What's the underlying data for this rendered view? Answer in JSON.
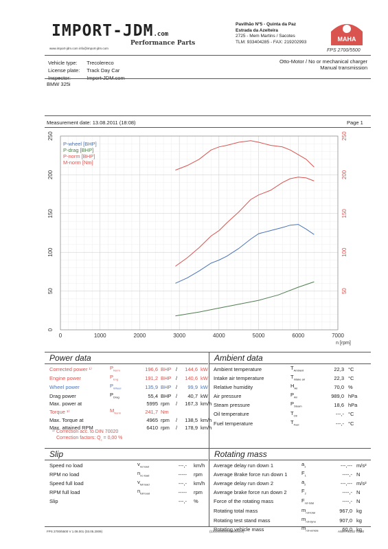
{
  "header": {
    "logo_text": "IMPORT-JDM",
    "logo_suffix": ".com",
    "tagline": "Performance Parts",
    "weblinks": "www.import-jdm.com    info@import-jdm.com",
    "address": [
      "Pavilhão Nº5 - Quinta da Paz",
      "Estrada da Azelteira",
      "2725 - Mem Martins / Sacotes",
      "TLM: 933404285 - FAX: 219202993"
    ],
    "maha_logo": "MAHA",
    "fps_model": "FPS 2700/5500"
  },
  "vehicle": {
    "rows": [
      {
        "label": "Vehicle type:",
        "value": "Trecolereco"
      },
      {
        "label": "License plate:",
        "value": "Track Day Car"
      },
      {
        "label": "Inspector:",
        "value": "Import-JDM.com"
      }
    ],
    "engine_type": "Otto-Motor / No or mechanical charger",
    "transmission": "Manual transmission",
    "model": "BMW 325i"
  },
  "measurement": {
    "date_label": "Measurement date: 13.08.2011 (18:08)",
    "page_label": "Page 1"
  },
  "chart_data": {
    "type": "line",
    "xlabel": "n [rpm]",
    "xlim": [
      0,
      7000
    ],
    "ylim_left": [
      0,
      250
    ],
    "ylim_right": [
      0,
      250
    ],
    "x_ticks": [
      0,
      1000,
      2000,
      3000,
      4000,
      5000,
      6000,
      7000
    ],
    "y_ticks_left": [
      0,
      50,
      100,
      150,
      200,
      250
    ],
    "y_ticks_right": [
      50,
      100,
      150,
      200,
      250
    ],
    "grid": true,
    "legend_position": "top-left",
    "series": [
      {
        "name": "P-wheel [BHP]",
        "color": "#4a73b5",
        "axis": "left",
        "x": [
          2900,
          3200,
          3500,
          3800,
          4000,
          4200,
          4500,
          4800,
          5000,
          5300,
          5600,
          5800,
          6000,
          6200,
          6400
        ],
        "y": [
          60,
          67,
          76,
          86,
          90,
          95,
          105,
          117,
          124,
          128,
          132,
          135,
          136,
          130,
          123
        ]
      },
      {
        "name": "P-drag [BHP]",
        "color": "#4e7d4e",
        "axis": "left",
        "x": [
          2900,
          3500,
          4000,
          4500,
          5000,
          5500,
          6000,
          6400
        ],
        "y": [
          18,
          23,
          28,
          33,
          38,
          45,
          55,
          62
        ]
      },
      {
        "name": "P-norm [BHP]",
        "color": "#d9534f",
        "axis": "left",
        "x": [
          2900,
          3200,
          3500,
          3800,
          4000,
          4200,
          4500,
          4800,
          5000,
          5300,
          5600,
          5800,
          6000,
          6200,
          6400
        ],
        "y": [
          82,
          93,
          106,
          121,
          128,
          138,
          152,
          168,
          174,
          180,
          190,
          195,
          197,
          196,
          192
        ]
      },
      {
        "name": "M-norm [Nm]",
        "color": "#d9534f",
        "axis": "right",
        "x": [
          2900,
          3200,
          3500,
          3800,
          4000,
          4200,
          4500,
          4800,
          5000,
          5300,
          5600,
          5800,
          6000,
          6200,
          6400
        ],
        "y": [
          206,
          212,
          220,
          232,
          236,
          238,
          242,
          244,
          242,
          238,
          236,
          232,
          226,
          220,
          210
        ]
      }
    ]
  },
  "power_data": {
    "title": "Power data",
    "rows": [
      {
        "label": "Corrected power ¹⁾",
        "sym": "P",
        "sub": "Norm",
        "v1": "196,6",
        "u1": "BHP",
        "sep": "/",
        "v2": "144,6",
        "u2": "kW",
        "cls": "red"
      },
      {
        "label": "Engine power",
        "sym": "P",
        "sub": "Eng",
        "v1": "191,2",
        "u1": "BHP",
        "sep": "/",
        "v2": "140,6",
        "u2": "kW",
        "cls": "red"
      },
      {
        "label": "Wheel power",
        "sym": "P",
        "sub": "Wheel",
        "v1": "135,9",
        "u1": "BHP",
        "sep": "/",
        "v2": "99,9",
        "u2": "kW",
        "cls": "blue"
      },
      {
        "label": "Drag power",
        "sym": "P",
        "sub": "Drag",
        "v1": "55,4",
        "u1": "BHP",
        "sep": "/",
        "v2": "40,7",
        "u2": "kW",
        "cls": ""
      },
      {
        "label": "Max. power at",
        "sym": "",
        "sub": "",
        "v1": "5995",
        "u1": "rpm",
        "sep": "/",
        "v2": "167,3",
        "u2": "km/h",
        "cls": ""
      },
      {
        "label": "Torque ¹⁾",
        "sym": "M",
        "sub": "Norm",
        "v1": "241,7",
        "u1": "Nm",
        "sep": "",
        "v2": "",
        "u2": "",
        "cls": "red"
      },
      {
        "label": "Max. Torque at",
        "sym": "",
        "sub": "",
        "v1": "4965",
        "u1": "rpm",
        "sep": "/",
        "v2": "138,5",
        "u2": "km/h",
        "cls": ""
      },
      {
        "label": "Max. attained RPM",
        "sym": "",
        "sub": "",
        "v1": "6410",
        "u1": "rpm",
        "sep": "/",
        "v2": "178,9",
        "u2": "km/h",
        "cls": ""
      }
    ],
    "note1": "¹⁾ Correction acc. to DIN 70020",
    "note2": "Correction factors: Q",
    "note2_sub": "c",
    "note2_value": "= 0,00 %"
  },
  "ambient_data": {
    "title": "Ambient data",
    "rows": [
      {
        "label": "Ambient temperature",
        "sym": "T",
        "sub": "Ambient",
        "value": "22,3",
        "unit": "°C"
      },
      {
        "label": "Intake air temperature",
        "sym": "T",
        "sub": "Intake air",
        "value": "22,3",
        "unit": "°C"
      },
      {
        "label": "Relative humidity",
        "sym": "H",
        "sub": "Air",
        "value": "70,0",
        "unit": "%"
      },
      {
        "label": "Air pressure",
        "sym": "P",
        "sub": "Air",
        "value": "989,0",
        "unit": "hPa"
      },
      {
        "label": "Steam pressure",
        "sym": "P",
        "sub": "Steam",
        "value": "18,6",
        "unit": "hPa"
      },
      {
        "label": "Oil temperature",
        "sym": "T",
        "sub": "Oil",
        "value": "---,-",
        "unit": "°C"
      },
      {
        "label": "Fuel temperature",
        "sym": "T",
        "sub": "Fuel",
        "value": "---,-",
        "unit": "°C"
      }
    ]
  },
  "slip": {
    "title": "Slip",
    "rows": [
      {
        "label": "Speed no load",
        "sym": "v",
        "sub": "no load",
        "value": "---,-",
        "unit": "km/h"
      },
      {
        "label": "RPM no load",
        "sym": "n",
        "sub": "no load",
        "value": "-----",
        "unit": "rpm"
      },
      {
        "label": "Speed full load",
        "sym": "v",
        "sub": "full load",
        "value": "---,-",
        "unit": "km/h"
      },
      {
        "label": "RPM full load",
        "sym": "n",
        "sub": "full load",
        "value": "-----",
        "unit": "rpm"
      },
      {
        "label": "Slip",
        "sym": "",
        "sub": "",
        "value": "---,-",
        "unit": "%"
      }
    ]
  },
  "rotating_mass": {
    "title": "Rotating mass",
    "rows": [
      {
        "label": "Average delay run down 1",
        "sym": "a",
        "sub": "1",
        "value": "---,---",
        "unit": "m/s²"
      },
      {
        "label": "Average Brake force run down 1",
        "sym": "F",
        "sub": "1",
        "value": "----,-",
        "unit": "N"
      },
      {
        "label": "Average delay run down 2",
        "sym": "a",
        "sub": "2",
        "value": "---,---",
        "unit": "m/s²"
      },
      {
        "label": "Average brake force run down 2",
        "sym": "F",
        "sub": "2",
        "value": "----,-",
        "unit": "N"
      },
      {
        "label": "Force of the rotating mass",
        "sym": "F",
        "sub": "rot-total",
        "value": "----,-",
        "unit": "N"
      },
      {
        "label": "Rotating total mass",
        "sym": "m",
        "sub": "rot-total",
        "value": "967,0",
        "unit": "kg"
      },
      {
        "label": "Rotating test stand mass",
        "sym": "m",
        "sub": "rot-dyno",
        "value": "907,0",
        "unit": "kg"
      },
      {
        "label": "Rotating vehicle mass",
        "sym": "m",
        "sub": "rot-vehicle",
        "value": "60,0",
        "unit": "kg"
      }
    ]
  },
  "footer": {
    "left": "FPS 2700/5500 V 1.08.001 (03.05.2009)",
    "center": "(1300000000000000000)",
    "right": "ASM-RS232 V2.50"
  }
}
